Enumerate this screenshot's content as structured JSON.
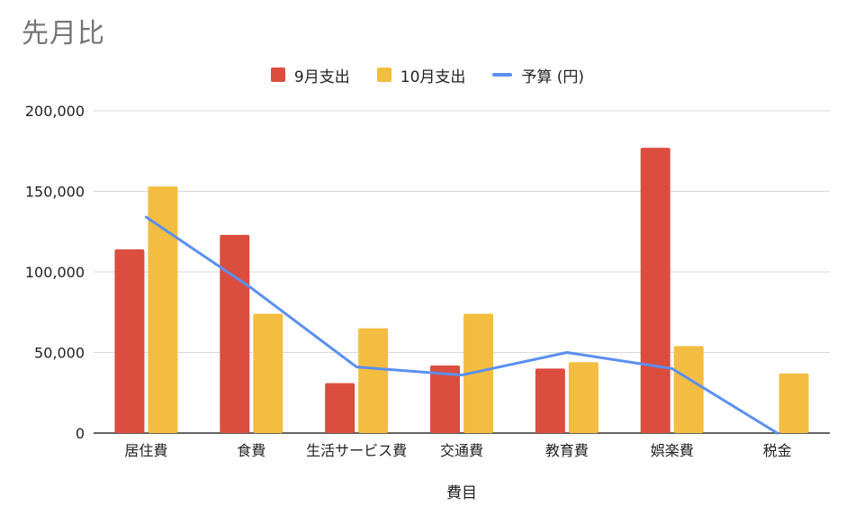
{
  "chart_data": {
    "type": "bar",
    "title": "先月比",
    "xlabel": "費目",
    "ylabel": "",
    "ylim": [
      0,
      200000
    ],
    "yticks": [
      0,
      50000,
      100000,
      150000,
      200000
    ],
    "ytick_labels": [
      "0",
      "50,000",
      "100,000",
      "150,000",
      "200,000"
    ],
    "categories": [
      "居住費",
      "食費",
      "生活サービス費",
      "交通費",
      "教育費",
      "娯楽費",
      "税金"
    ],
    "series": [
      {
        "name": "9月支出",
        "type": "bar",
        "color": "#DB4E3F",
        "values": [
          114000,
          123000,
          31000,
          42000,
          40000,
          177000,
          0
        ]
      },
      {
        "name": "10月支出",
        "type": "bar",
        "color": "#F3BD41",
        "values": [
          153000,
          74000,
          65000,
          74000,
          44000,
          54000,
          37000
        ]
      },
      {
        "name": "予算 (円)",
        "type": "line",
        "color": "#5B8FF0",
        "values": [
          134000,
          90000,
          41000,
          36000,
          50000,
          40000,
          0
        ]
      }
    ],
    "grid": true,
    "legend_position": "top-center"
  }
}
